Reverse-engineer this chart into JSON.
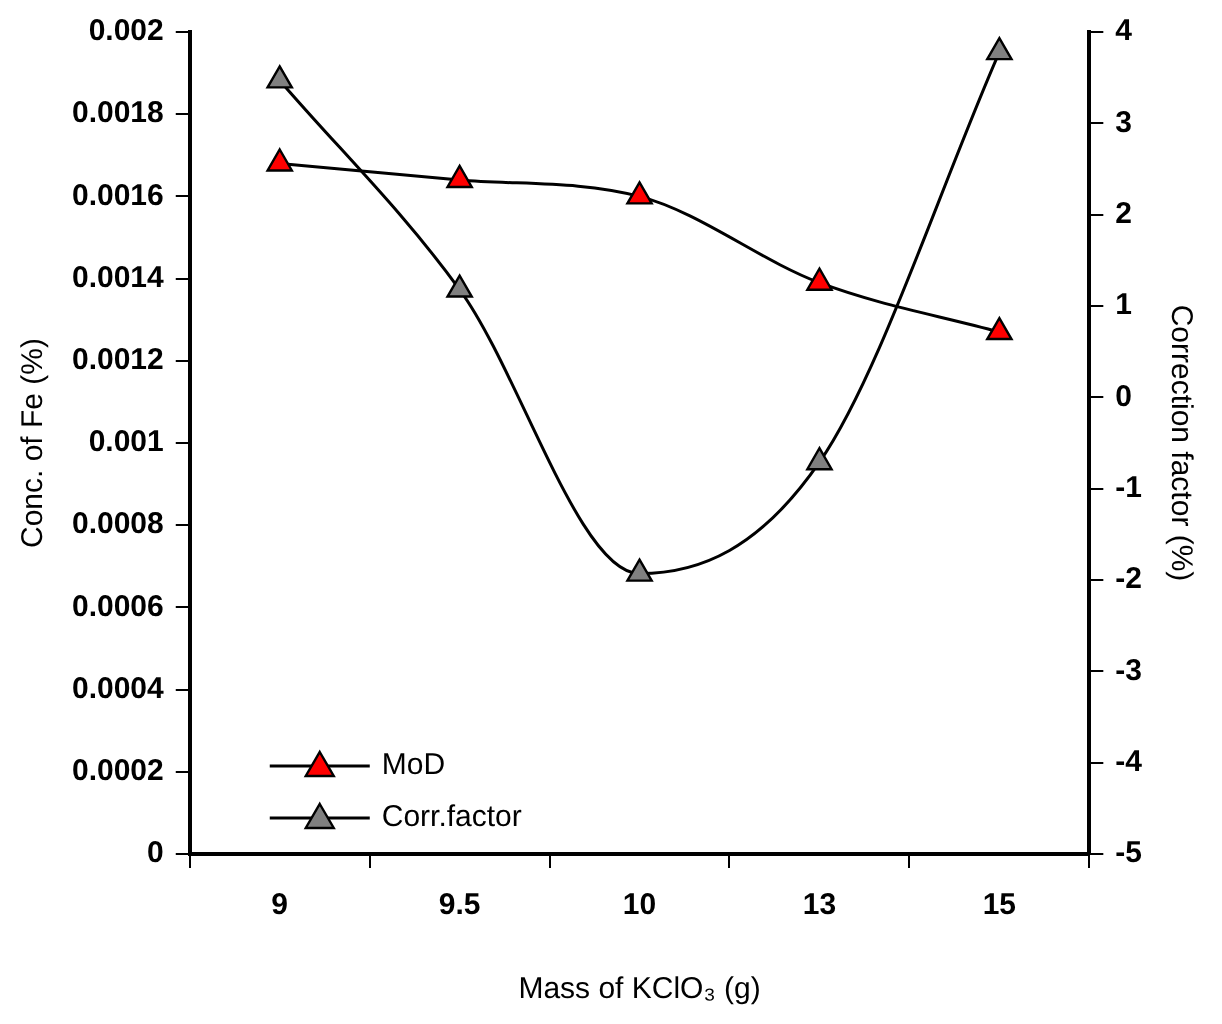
{
  "chart_data": {
    "type": "line",
    "xlabel": "Mass of KClO₃ (g)",
    "ylabel": "Conc. of Fe (%)",
    "y2label": "Correction factor (%)",
    "categories": [
      "9",
      "9.5",
      "10",
      "13",
      "15"
    ],
    "series": [
      {
        "name": "MoD",
        "color": "#ff0000",
        "values": [
          0.00168,
          0.00164,
          0.0016,
          0.00139,
          0.00127
        ]
      },
      {
        "name": "Corr.factor",
        "color": "#808080",
        "axis": "y2",
        "values": [
          3.47,
          1.18,
          -1.93,
          -0.71,
          3.78
        ]
      }
    ],
    "ylim": [
      0,
      0.002
    ],
    "yticks": [
      0,
      0.0002,
      0.0004,
      0.0006,
      0.0008,
      0.001,
      0.0012,
      0.0014,
      0.0016,
      0.0018,
      0.002
    ],
    "y2lim": [
      -5,
      4
    ],
    "y2ticks": [
      -5,
      -4,
      -3,
      -2,
      -1,
      0,
      1,
      2,
      3,
      4
    ],
    "grid": false,
    "legend": "bottom left",
    "marker": "triangle",
    "line_style": "solid"
  }
}
